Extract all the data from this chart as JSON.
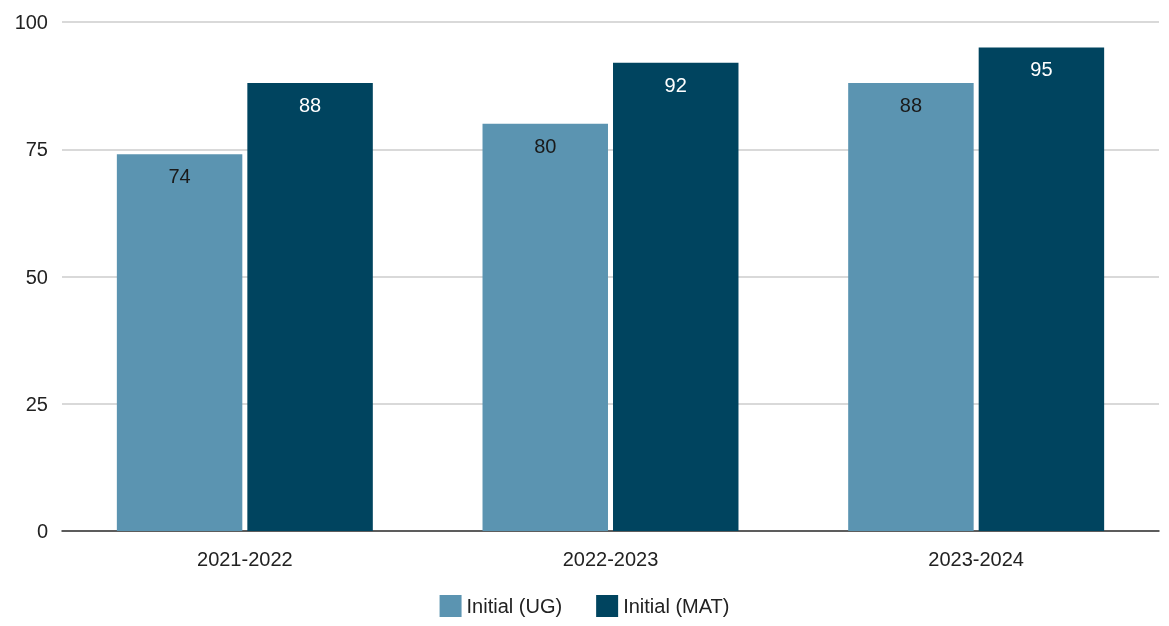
{
  "chart_data": {
    "type": "bar",
    "categories": [
      "2021-2022",
      "2022-2023",
      "2023-2024"
    ],
    "series": [
      {
        "name": "Initial (UG)",
        "color": "#5b94b1",
        "values": [
          74,
          80,
          88
        ]
      },
      {
        "name": "Initial (MAT)",
        "color": "#00445f",
        "values": [
          88,
          92,
          95
        ]
      }
    ],
    "ylim": [
      0,
      100
    ],
    "yticks": [
      0,
      25,
      50,
      75,
      100
    ],
    "grid": "y",
    "legend": "bottom",
    "data_labels": true
  }
}
